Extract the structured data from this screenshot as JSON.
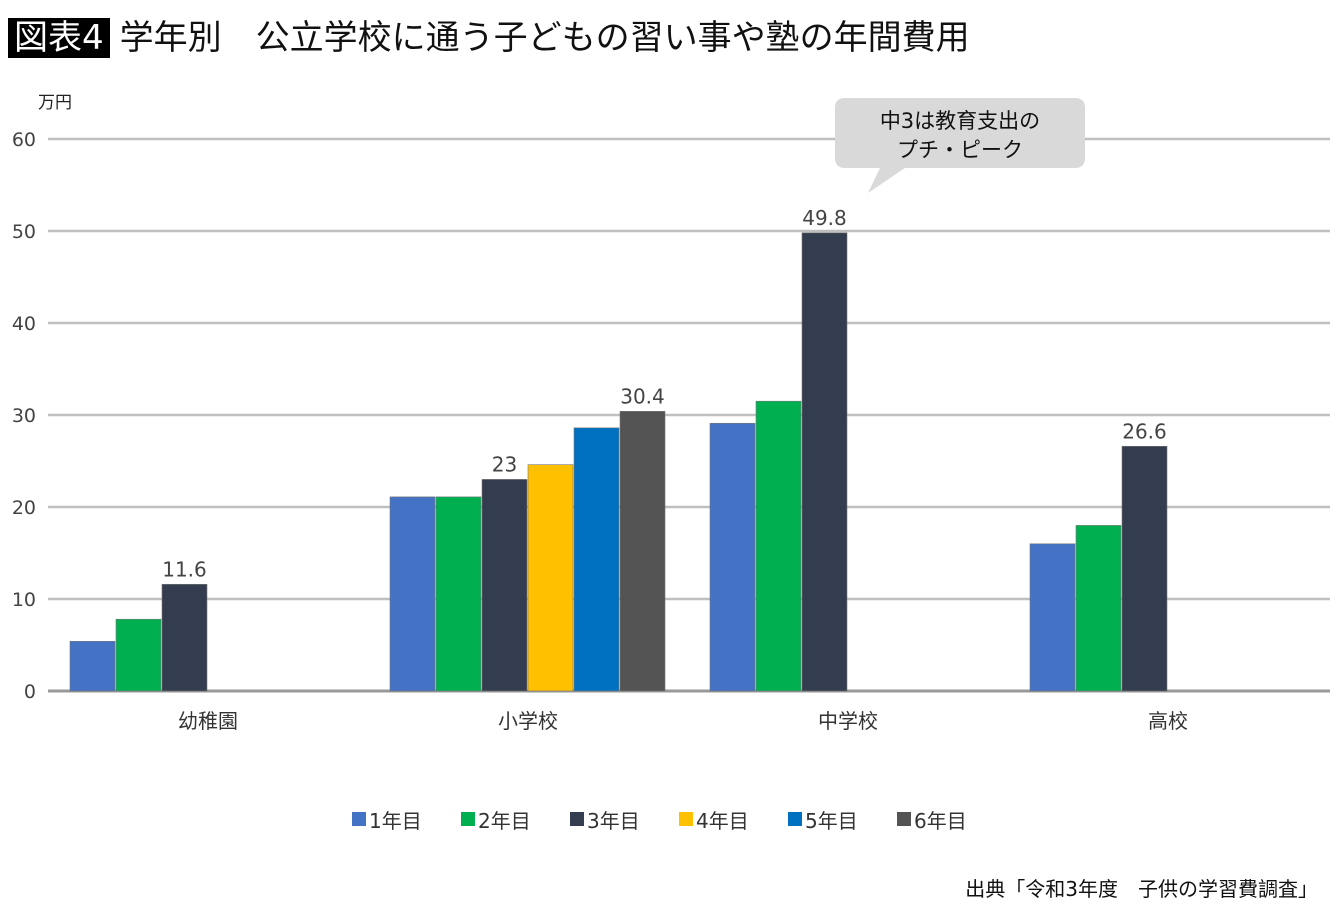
{
  "header": {
    "tag": "図表4",
    "title": "学年別　公立学校に通う子どもの習い事や塾の年間費用"
  },
  "source": "出典「令和3年度　子供の学習費調査」",
  "callout": {
    "line1": "中3は教育支出の",
    "line2": "プチ・ピーク"
  },
  "chart_data": {
    "type": "bar",
    "ylabel": "万円",
    "ylim": [
      0,
      60
    ],
    "yticks": [
      0,
      10,
      20,
      30,
      40,
      50,
      60
    ],
    "grid": true,
    "legend_position": "bottom",
    "categories": [
      "幼稚園",
      "小学校",
      "中学校",
      "高校"
    ],
    "series": [
      {
        "name": "1年目",
        "color": "#4472c4",
        "values": [
          5.4,
          21.1,
          29.1,
          16.0
        ]
      },
      {
        "name": "2年目",
        "color": "#00b050",
        "values": [
          7.8,
          21.1,
          31.5,
          18.0
        ]
      },
      {
        "name": "3年目",
        "color": "#333d4f",
        "values": [
          11.6,
          23,
          49.8,
          26.6
        ]
      },
      {
        "name": "4年目",
        "color": "#ffc000",
        "values": [
          null,
          24.6,
          null,
          null
        ]
      },
      {
        "name": "5年目",
        "color": "#0070c0",
        "values": [
          null,
          28.6,
          null,
          null
        ]
      },
      {
        "name": "6年目",
        "color": "#545454",
        "values": [
          null,
          30.4,
          null,
          null
        ]
      }
    ],
    "data_labels": [
      {
        "category": "幼稚園",
        "series": "3年目",
        "text": "11.6"
      },
      {
        "category": "小学校",
        "series": "3年目",
        "text": "23"
      },
      {
        "category": "小学校",
        "series": "6年目",
        "text": "30.4"
      },
      {
        "category": "中学校",
        "series": "3年目",
        "text": "49.8"
      },
      {
        "category": "高校",
        "series": "3年目",
        "text": "26.6"
      }
    ]
  }
}
